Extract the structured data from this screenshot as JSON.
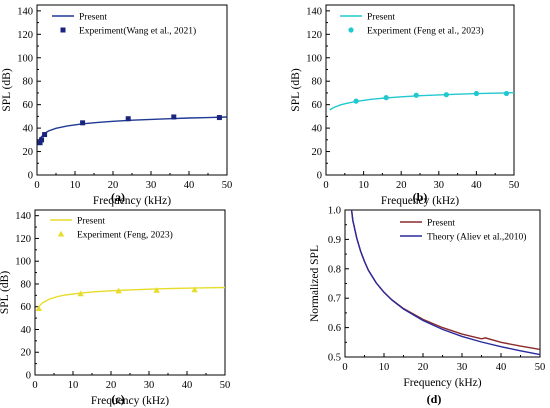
{
  "chart_data": [
    {
      "id": "a",
      "type": "line",
      "panel_label": "(a)",
      "xlabel": "Frequency (kHz)",
      "ylabel": "SPL (dB)",
      "xlim": [
        0,
        50
      ],
      "ylim": [
        0,
        145
      ],
      "xticks": [
        0,
        10,
        20,
        30,
        40,
        50
      ],
      "yticks": [
        0,
        20,
        40,
        60,
        80,
        100,
        120,
        140
      ],
      "legend_position": "top-left",
      "series": [
        {
          "name": "Present",
          "kind": "line",
          "color": "#1f3a93",
          "x": [
            0.5,
            1,
            2,
            3,
            5,
            8,
            12,
            16,
            20,
            25,
            30,
            35,
            40,
            45,
            50
          ],
          "y": [
            28,
            32,
            35.5,
            37.5,
            39.8,
            41.9,
            43.7,
            44.9,
            45.8,
            46.7,
            47.4,
            48,
            48.6,
            49,
            49.5
          ]
        },
        {
          "name": "Experiment(Wang et al., 2021)",
          "kind": "scatter",
          "marker": "square",
          "color": "#1a237e",
          "x": [
            0.8,
            1.2,
            2,
            12,
            24,
            36,
            48
          ],
          "y": [
            27.5,
            30,
            34.5,
            44.5,
            48,
            49.5,
            49
          ]
        }
      ]
    },
    {
      "id": "b",
      "type": "line",
      "panel_label": "(b)",
      "xlabel": "Frequency (kHz)",
      "ylabel": "SPL (dB)",
      "xlim": [
        0,
        50
      ],
      "ylim": [
        0,
        145
      ],
      "xticks": [
        0,
        10,
        20,
        30,
        40,
        50
      ],
      "yticks": [
        0,
        20,
        40,
        60,
        80,
        100,
        120,
        140
      ],
      "legend_position": "top-left",
      "series": [
        {
          "name": "Present",
          "kind": "line",
          "color": "#22c8d0",
          "x": [
            1,
            2,
            4,
            6,
            8,
            12,
            16,
            20,
            25,
            30,
            35,
            40,
            45,
            50
          ],
          "y": [
            55.5,
            57.5,
            60,
            61.5,
            62.8,
            64.6,
            65.8,
            66.7,
            67.6,
            68.3,
            68.9,
            69.4,
            69.8,
            70.2
          ]
        },
        {
          "name": "Experiment (Feng et al., 2023)",
          "kind": "scatter",
          "marker": "circle",
          "color": "#22c8d0",
          "x": [
            8,
            16,
            24,
            32,
            40,
            48
          ],
          "y": [
            63,
            66,
            68,
            68.5,
            69.5,
            69.5
          ]
        }
      ]
    },
    {
      "id": "c",
      "type": "line",
      "panel_label": "(c)",
      "xlabel": "Frequency (kHz)",
      "ylabel": "SPL (dB)",
      "xlim": [
        0,
        50
      ],
      "ylim": [
        0,
        145
      ],
      "xticks": [
        0,
        10,
        20,
        30,
        40,
        50
      ],
      "yticks": [
        0,
        20,
        40,
        60,
        80,
        100,
        120,
        140
      ],
      "legend_position": "top-left",
      "series": [
        {
          "name": "Present",
          "kind": "line",
          "color": "#e8dc2a",
          "x": [
            1,
            2,
            4,
            6,
            8,
            12,
            16,
            20,
            25,
            30,
            35,
            40,
            45,
            50
          ],
          "y": [
            60,
            63.5,
            67,
            69,
            70.3,
            72,
            73.2,
            74,
            74.8,
            75.4,
            75.9,
            76.3,
            76.6,
            76.9
          ]
        },
        {
          "name": "Experiment (Feng, 2023)",
          "kind": "scatter",
          "marker": "triangle",
          "color": "#e8dc2a",
          "x": [
            1,
            12,
            22,
            32,
            42
          ],
          "y": [
            58.5,
            71.5,
            74,
            74.5,
            75
          ]
        }
      ]
    },
    {
      "id": "d",
      "type": "line",
      "panel_label": "(d)",
      "xlabel": "Frequency (kHz)",
      "ylabel": "Normalized SPL",
      "xlim": [
        0,
        50
      ],
      "ylim": [
        0.5,
        1.0
      ],
      "xticks": [
        0,
        10,
        20,
        30,
        40,
        50
      ],
      "yticks": [
        0.5,
        0.6,
        0.7,
        0.8,
        0.9,
        1.0
      ],
      "ytick_labels": [
        "0.5",
        "0.6",
        "0.7",
        "0.8",
        "0.9",
        "1.0"
      ],
      "legend_position": "top-right",
      "series": [
        {
          "name": "Present",
          "kind": "line",
          "color": "#8b2a2a",
          "x": [
            1.7,
            2,
            3,
            4,
            5,
            6,
            8,
            10,
            12,
            15,
            20,
            25,
            30,
            35,
            36,
            40,
            45,
            50
          ],
          "y": [
            1.0,
            0.965,
            0.905,
            0.86,
            0.825,
            0.795,
            0.752,
            0.72,
            0.695,
            0.665,
            0.628,
            0.6,
            0.578,
            0.562,
            0.565,
            0.55,
            0.537,
            0.526
          ]
        },
        {
          "name": "Theory (Aliev et al.,2010)",
          "kind": "line",
          "color": "#2a2a9e",
          "x": [
            1.7,
            2,
            3,
            4,
            5,
            6,
            8,
            10,
            12,
            15,
            20,
            25,
            30,
            35,
            40,
            45,
            50
          ],
          "y": [
            1.0,
            0.965,
            0.905,
            0.86,
            0.825,
            0.795,
            0.752,
            0.72,
            0.694,
            0.663,
            0.624,
            0.594,
            0.57,
            0.551,
            0.535,
            0.521,
            0.508
          ]
        }
      ]
    }
  ]
}
